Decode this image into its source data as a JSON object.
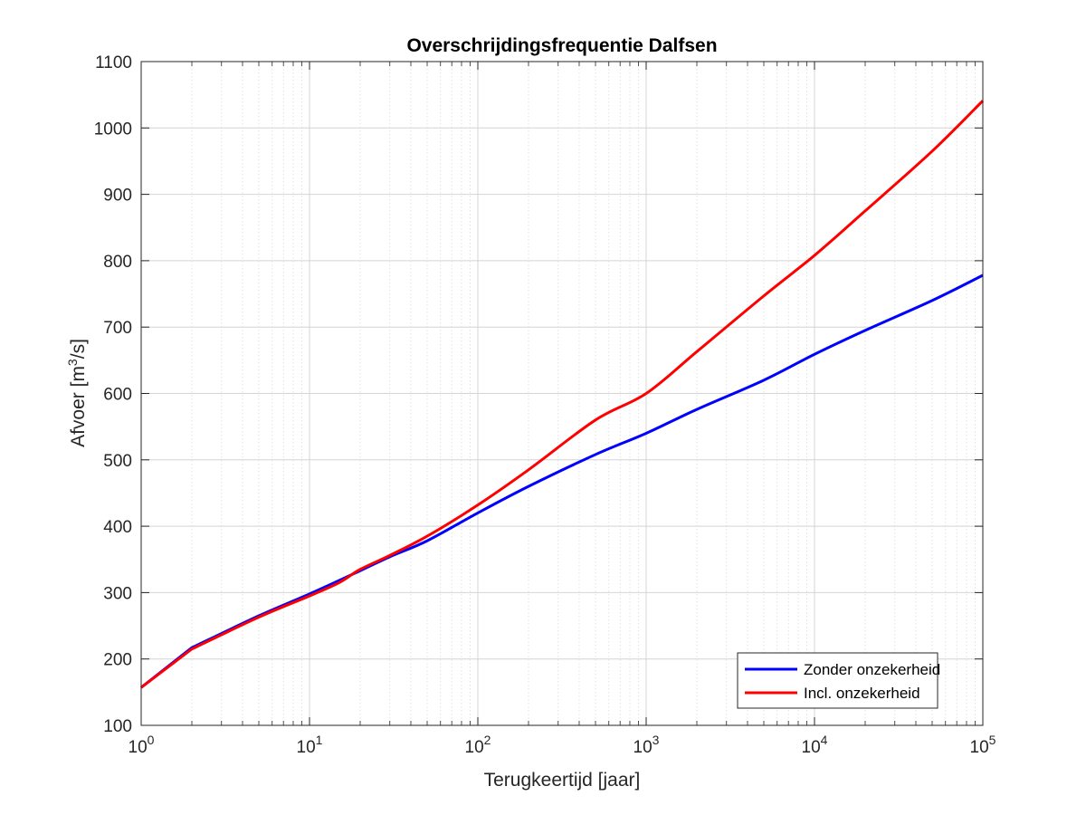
{
  "chart_data": {
    "type": "line",
    "title": "Overschrijdingsfrequentie Dalfsen",
    "xlabel": "Terugkeertijd [jaar]",
    "ylabel": {
      "prefix": "Afvoer [m",
      "sup": "3",
      "suffix": "/s]"
    },
    "xscale": "log",
    "xlim": [
      1,
      100000
    ],
    "ylim": [
      100,
      1100
    ],
    "grid": true,
    "legend_position": "bottom-right",
    "x_ticks": [
      {
        "base": "10",
        "exp": "0"
      },
      {
        "base": "10",
        "exp": "1"
      },
      {
        "base": "10",
        "exp": "2"
      },
      {
        "base": "10",
        "exp": "3"
      },
      {
        "base": "10",
        "exp": "4"
      },
      {
        "base": "10",
        "exp": "5"
      }
    ],
    "y_ticks": [
      "100",
      "200",
      "300",
      "400",
      "500",
      "600",
      "700",
      "800",
      "900",
      "1000",
      "1100"
    ],
    "series": [
      {
        "name": "Zonder onzekerheid",
        "color": "#0000ff",
        "x": [
          1,
          2,
          5,
          10,
          20,
          30,
          50,
          100,
          200,
          500,
          1000,
          2000,
          5000,
          10000,
          20000,
          50000,
          100000
        ],
        "y": [
          157,
          217,
          265,
          298,
          333,
          354,
          378,
          420,
          460,
          508,
          540,
          576,
          620,
          659,
          695,
          740,
          778
        ]
      },
      {
        "name": "Incl. onzekerheid",
        "color": "#ff0000",
        "x": [
          1,
          2,
          5,
          10,
          15,
          20,
          30,
          50,
          100,
          200,
          500,
          1000,
          2000,
          5000,
          10000,
          20000,
          50000,
          100000
        ],
        "y": [
          157,
          215,
          263,
          295,
          315,
          335,
          356,
          385,
          432,
          485,
          560,
          600,
          663,
          747,
          808,
          875,
          965,
          1041
        ]
      }
    ]
  }
}
